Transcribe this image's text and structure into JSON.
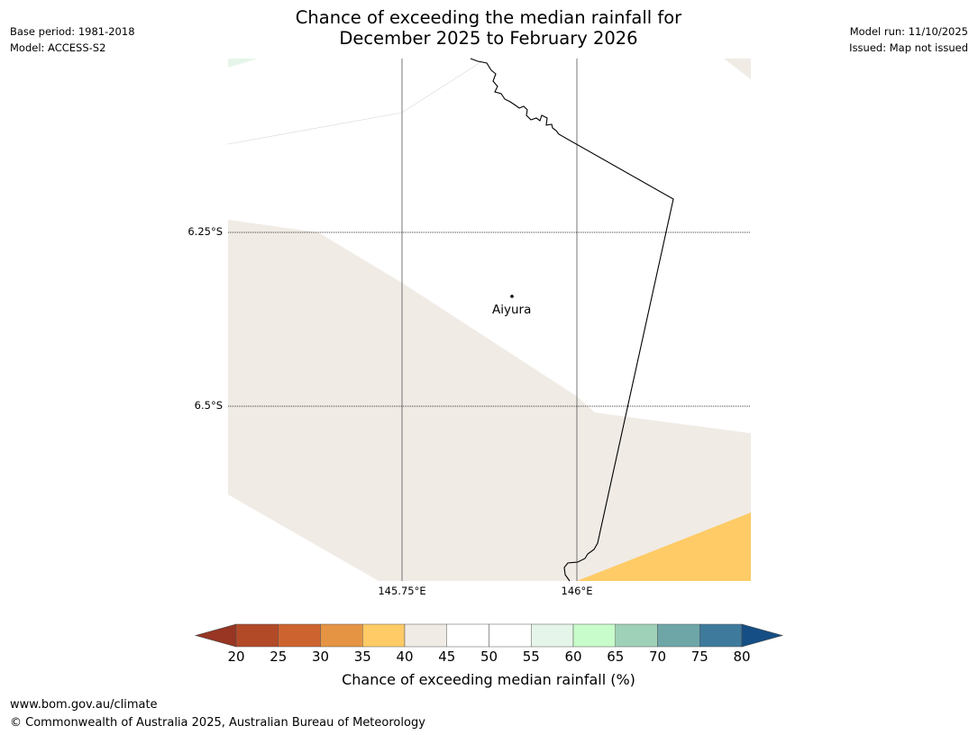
{
  "title": {
    "line1": "Chance of exceeding the median rainfall for",
    "line2": "December 2025 to February 2026"
  },
  "meta_left": {
    "base_period": "Base period: 1981-2018",
    "model": "Model: ACCESS-S2"
  },
  "meta_right": {
    "model_run": "Model run: 11/10/2025",
    "issued": "Issued: Map not issued"
  },
  "map": {
    "lat_labels": [
      "6.25°S",
      "6.5°S"
    ],
    "lon_labels": [
      "145.75°E",
      "146°E"
    ],
    "place": "Aiyura",
    "colors": {
      "band_40_45": "#f0ebe5",
      "band_35_40": "#fecb66",
      "band_60_65": "#e6f5e9",
      "coast": "#000000",
      "grid": "#555555"
    }
  },
  "colorbar": {
    "label": "Chance of exceeding median rainfall (%)",
    "ticks": [
      "20",
      "25",
      "30",
      "35",
      "40",
      "45",
      "50",
      "55",
      "60",
      "65",
      "70",
      "75",
      "80"
    ],
    "colors": [
      "#983523",
      "#b24a28",
      "#cd6430",
      "#e59444",
      "#fecb66",
      "#f0ebe5",
      "#ffffff",
      "#ffffff",
      "#e6f5e9",
      "#c8fccb",
      "#9fd1b8",
      "#6ea6a8",
      "#3e7a9c",
      "#154e85"
    ]
  },
  "footer": {
    "url": "www.bom.gov.au/climate",
    "copyright": "© Commonwealth of Australia 2025, Australian Bureau of Meteorology"
  }
}
